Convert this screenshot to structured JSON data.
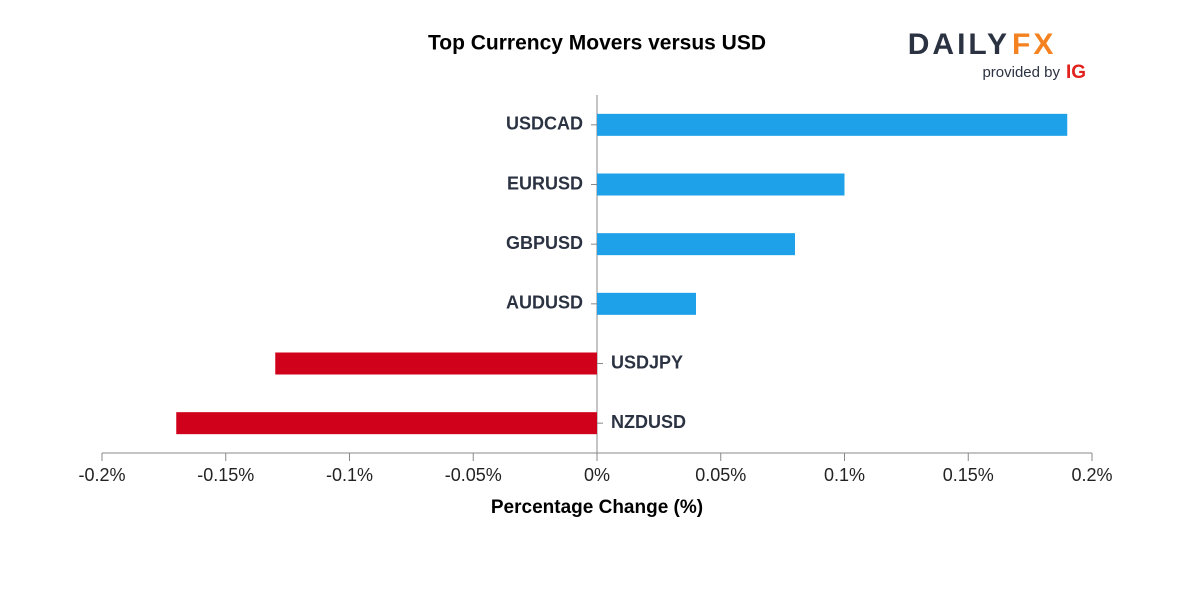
{
  "chart_data": {
    "type": "hbar",
    "title": "Top Currency Movers versus USD",
    "categories": [
      "USDCAD",
      "EURUSD",
      "GBPUSD",
      "AUDUSD",
      "USDJPY",
      "NZDUSD"
    ],
    "values": [
      0.19,
      0.1,
      0.08,
      0.04,
      -0.13,
      -0.17
    ],
    "positive_color": "#1ea1e8",
    "negative_color": "#d0021b",
    "xlabel": "Percentage Change (%)",
    "xlim": [
      -0.2,
      0.2
    ],
    "xticks": [
      {
        "value": -0.2,
        "label": "-0.2%"
      },
      {
        "value": -0.15,
        "label": "-0.15%"
      },
      {
        "value": -0.1,
        "label": "-0.1%"
      },
      {
        "value": -0.05,
        "label": "-0.05%"
      },
      {
        "value": 0,
        "label": "0%"
      },
      {
        "value": 0.05,
        "label": "0.05%"
      },
      {
        "value": 0.1,
        "label": "0.1%"
      },
      {
        "value": 0.15,
        "label": "0.15%"
      },
      {
        "value": 0.2,
        "label": "0.2%"
      }
    ]
  },
  "logo": {
    "brand": "DAILY",
    "brand_accent": "FX",
    "provided_by": "provided by",
    "partner": "IG"
  }
}
